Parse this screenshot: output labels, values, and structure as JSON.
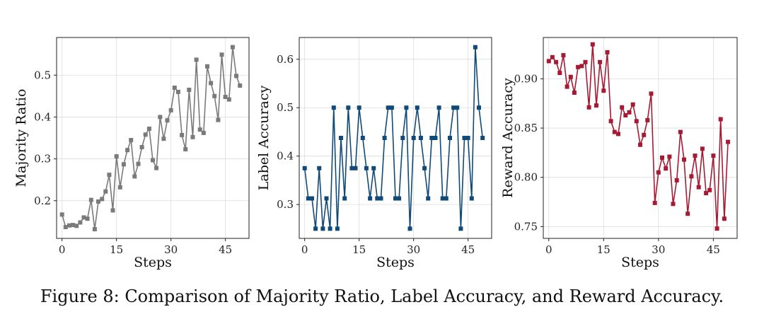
{
  "caption": "Figure 8: Comparison of Majority Ratio, Label Accuracy, and Reward Accuracy.",
  "chart_data": [
    {
      "type": "line",
      "xlabel": "Steps",
      "ylabel": "Majority Ratio",
      "color": "#7a7a7a",
      "xlim": [
        -1.5,
        51.5
      ],
      "ylim": [
        0.11,
        0.59
      ],
      "xticks": [
        0,
        15,
        30,
        45
      ],
      "yticks": [
        0.2,
        0.3,
        0.4,
        0.5
      ],
      "yticklabels": [
        "0.2",
        "0.3",
        "0.4",
        "0.5"
      ],
      "grid": true,
      "x": [
        0,
        1,
        2,
        3,
        4,
        5,
        6,
        7,
        8,
        9,
        10,
        11,
        12,
        13,
        14,
        15,
        16,
        17,
        18,
        19,
        20,
        21,
        22,
        23,
        24,
        25,
        26,
        27,
        28,
        29,
        30,
        31,
        32,
        33,
        34,
        35,
        36,
        37,
        38,
        39,
        40,
        41,
        42,
        43,
        44,
        45,
        46,
        47,
        48,
        49
      ],
      "y": [
        0.167,
        0.137,
        0.141,
        0.142,
        0.14,
        0.148,
        0.16,
        0.157,
        0.202,
        0.132,
        0.198,
        0.204,
        0.222,
        0.262,
        0.177,
        0.306,
        0.232,
        0.287,
        0.321,
        0.345,
        0.258,
        0.288,
        0.328,
        0.358,
        0.372,
        0.297,
        0.278,
        0.4,
        0.348,
        0.392,
        0.416,
        0.47,
        0.46,
        0.357,
        0.323,
        0.465,
        0.352,
        0.537,
        0.37,
        0.362,
        0.521,
        0.481,
        0.45,
        0.393,
        0.549,
        0.448,
        0.442,
        0.567,
        0.498,
        0.475
      ]
    },
    {
      "type": "line",
      "xlabel": "Steps",
      "ylabel": "Label Accuracy",
      "color": "#114a78",
      "xlim": [
        -1.5,
        51.5
      ],
      "ylim": [
        0.23,
        0.645
      ],
      "xticks": [
        0,
        15,
        30,
        45
      ],
      "yticks": [
        0.3,
        0.4,
        0.5,
        0.6
      ],
      "yticklabels": [
        "0.3",
        "0.4",
        "0.5",
        "0.6"
      ],
      "grid": true,
      "x": [
        0,
        1,
        2,
        3,
        4,
        5,
        6,
        7,
        8,
        9,
        10,
        11,
        12,
        13,
        14,
        15,
        16,
        17,
        18,
        19,
        20,
        21,
        22,
        23,
        24,
        25,
        26,
        27,
        28,
        29,
        30,
        31,
        32,
        33,
        34,
        35,
        36,
        37,
        38,
        39,
        40,
        41,
        42,
        43,
        44,
        45,
        46,
        47,
        48,
        49
      ],
      "y": [
        0.375,
        0.3125,
        0.3125,
        0.25,
        0.375,
        0.25,
        0.3125,
        0.25,
        0.5,
        0.25,
        0.4375,
        0.3125,
        0.5,
        0.375,
        0.375,
        0.5,
        0.4375,
        0.375,
        0.3125,
        0.375,
        0.3125,
        0.3125,
        0.4375,
        0.5,
        0.5,
        0.3125,
        0.3125,
        0.4375,
        0.5,
        0.25,
        0.4375,
        0.5,
        0.4375,
        0.375,
        0.3125,
        0.4375,
        0.4375,
        0.5,
        0.3125,
        0.3125,
        0.4375,
        0.5,
        0.5,
        0.25,
        0.4375,
        0.4375,
        0.3125,
        0.625,
        0.5,
        0.4375
      ]
    },
    {
      "type": "line",
      "xlabel": "Steps",
      "ylabel": "Reward Accuracy",
      "color": "#a61b33",
      "xlim": [
        -1.5,
        51.5
      ],
      "ylim": [
        0.738,
        0.942
      ],
      "xticks": [
        0,
        15,
        30,
        45
      ],
      "yticks": [
        0.75,
        0.8,
        0.85,
        0.9
      ],
      "yticklabels": [
        "0.75",
        "0.80",
        "0.85",
        "0.90"
      ],
      "grid": true,
      "x": [
        0,
        1,
        2,
        3,
        4,
        5,
        6,
        7,
        8,
        9,
        10,
        11,
        12,
        13,
        14,
        15,
        16,
        17,
        18,
        19,
        20,
        21,
        22,
        23,
        24,
        25,
        26,
        27,
        28,
        29,
        30,
        31,
        32,
        33,
        34,
        35,
        36,
        37,
        38,
        39,
        40,
        41,
        42,
        43,
        44,
        45,
        46,
        47,
        48,
        49
      ],
      "y": [
        0.918,
        0.922,
        0.917,
        0.906,
        0.924,
        0.892,
        0.902,
        0.886,
        0.912,
        0.913,
        0.917,
        0.871,
        0.935,
        0.873,
        0.917,
        0.888,
        0.927,
        0.857,
        0.846,
        0.844,
        0.871,
        0.863,
        0.866,
        0.874,
        0.857,
        0.833,
        0.843,
        0.858,
        0.885,
        0.774,
        0.805,
        0.82,
        0.809,
        0.821,
        0.773,
        0.797,
        0.846,
        0.818,
        0.763,
        0.801,
        0.822,
        0.79,
        0.829,
        0.784,
        0.787,
        0.822,
        0.748,
        0.859,
        0.758,
        0.836
      ]
    }
  ]
}
